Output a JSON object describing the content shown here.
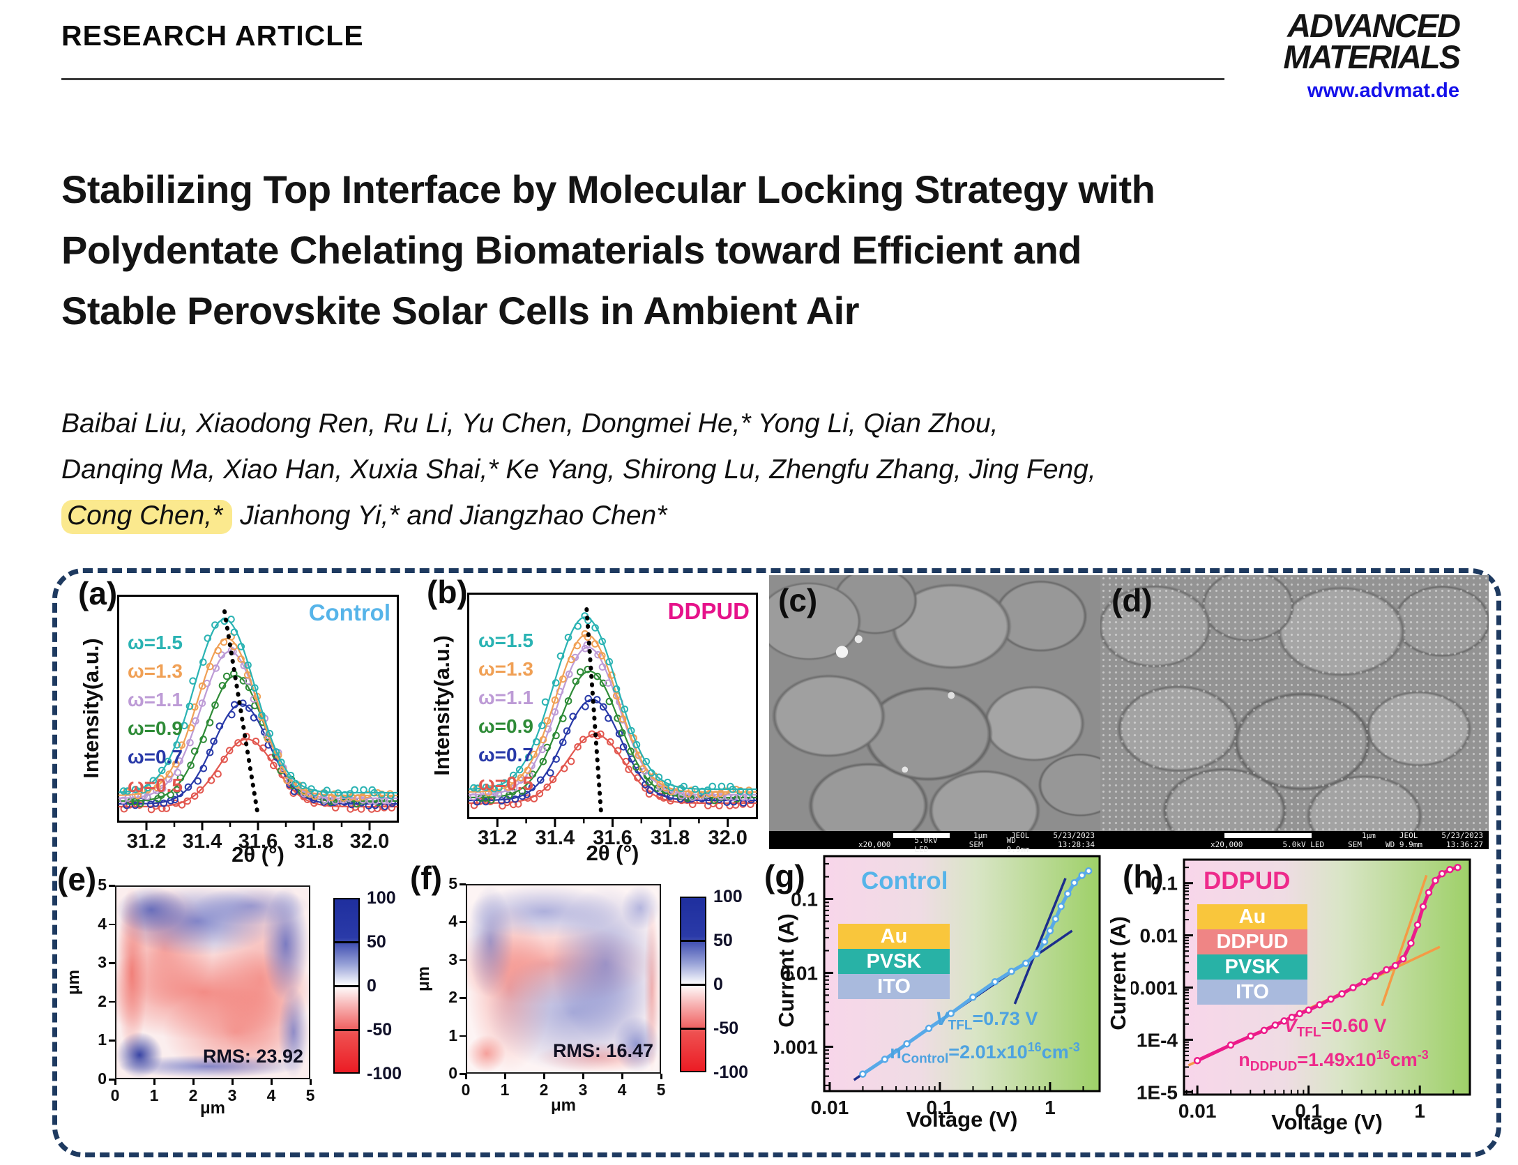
{
  "header": {
    "article_type": "RESEARCH ARTICLE",
    "brand_line1": "ADVANCED",
    "brand_line2": "MATERIALS",
    "website": "www.advmat.de"
  },
  "title": {
    "line1": "Stabilizing Top Interface by Molecular Locking Strategy with",
    "line2": "Polydentate Chelating Biomaterials toward Efficient and",
    "line3": "Stable Perovskite Solar Cells in Ambient Air"
  },
  "authors": {
    "line1": "Baibai Liu, Xiaodong Ren, Ru Li, Yu Chen, Dongmei He,* Yong Li, Qian Zhou,",
    "line2": "Danqing Ma, Xiao Han, Xuxia Shai,* Ke Yang, Shirong Lu, Zhengfu Zhang, Jing Feng,",
    "line3_highlight": "Cong Chen,*",
    "line3_rest": " Jianhong Yi,* and Jiangzhao Chen*"
  },
  "figure": {
    "panel_a": {
      "label": "(a)",
      "title": "Control",
      "xlabel": "2θ (°)",
      "ylabel": "Intensity(a.u.)"
    },
    "panel_b": {
      "label": "(b)",
      "title": "DDPUD",
      "xlabel": "2θ (°)",
      "ylabel": "Intensity(a.u.)"
    },
    "panel_c": {
      "label": "(c)",
      "bar": {
        "scale": "1μm",
        "vendor": "JEOL",
        "date": "5/23/2023",
        "mag": "x20,000",
        "volt": "5.0kV LED",
        "mode": "SEM",
        "wd": "WD 9.9mm",
        "time": "13:28:34"
      }
    },
    "panel_d": {
      "label": "(d)",
      "bar": {
        "scale": "1μm",
        "vendor": "JEOL",
        "date": "5/23/2023",
        "mag": "x20,000",
        "volt": "5.0kV LED",
        "mode": "SEM",
        "wd": "WD 9.9mm",
        "time": "13:36:27"
      }
    },
    "panel_e": {
      "label": "(e)",
      "rms": "RMS: 23.92",
      "axis_unit": "μm",
      "axis_ticks": [
        "0",
        "1",
        "2",
        "3",
        "4",
        "5"
      ],
      "colorbar_ticks": [
        "100",
        "50",
        "0",
        "-50",
        "-100"
      ]
    },
    "panel_f": {
      "label": "(f)",
      "rms": "RMS: 16.47",
      "axis_unit": "μm",
      "axis_ticks": [
        "0",
        "1",
        "2",
        "3",
        "4",
        "5"
      ],
      "colorbar_ticks": [
        "100",
        "50",
        "0",
        "-50",
        "-100"
      ]
    },
    "panel_g": {
      "label": "(g)",
      "title": "Control",
      "xlabel": "Voltage (V)",
      "ylabel": "Current (A)",
      "ann_color": "#4da2e0",
      "stack": [
        {
          "name": "Au",
          "color": "#f9c63c"
        },
        {
          "name": "PVSK",
          "color": "#28b2a6"
        },
        {
          "name": "ITO",
          "color": "#a9badd"
        }
      ],
      "ann": {
        "v": "V",
        "v_sub": "TFL",
        "v_eq": "=0.73 V",
        "n": "n",
        "n_sub": "Control",
        "n_eq": "=2.01x10",
        "n_exp": "16",
        "n_unit": "cm",
        "n_unit_exp": "-3"
      }
    },
    "panel_h": {
      "label": "(h)",
      "title": "DDPUD",
      "xlabel": "Voltage (V)",
      "ylabel": "Current (A)",
      "ann_color": "#ee2a8b",
      "stack": [
        {
          "name": "Au",
          "color": "#f9c63c"
        },
        {
          "name": "DDPUD",
          "color": "#ef8585"
        },
        {
          "name": "PVSK",
          "color": "#28b2a6"
        },
        {
          "name": "ITO",
          "color": "#a9badd"
        }
      ],
      "ann": {
        "v": "V",
        "v_sub": "TFL",
        "v_eq": "=0.60 V",
        "n": "n",
        "n_sub": "DDPUD",
        "n_eq": "=1.49x10",
        "n_exp": "16",
        "n_unit": "cm",
        "n_unit_exp": "-3"
      }
    }
  },
  "chart_data": [
    {
      "id": "xrd_control",
      "type": "line",
      "title": "Control",
      "title_color": "#56b4e9",
      "xlabel": "2θ (°)",
      "ylabel": "Intensity(a.u.)",
      "xlim": [
        31.1,
        32.1
      ],
      "x_ticks": [
        31.2,
        31.4,
        31.6,
        31.8,
        32.0
      ],
      "series": [
        {
          "name": "ω=1.5",
          "color": "#2ab3b3",
          "center": 31.48,
          "amp": 1.0,
          "width": 0.155
        },
        {
          "name": "ω=1.3",
          "color": "#f0a055",
          "center": 31.49,
          "amp": 0.89,
          "width": 0.15
        },
        {
          "name": "ω=1.1",
          "color": "#bd9bd6",
          "center": 31.5,
          "amp": 0.82,
          "width": 0.15
        },
        {
          "name": "ω=0.9",
          "color": "#2e8b37",
          "center": 31.52,
          "amp": 0.69,
          "width": 0.145
        },
        {
          "name": "ω=0.7",
          "color": "#2839a8",
          "center": 31.54,
          "amp": 0.54,
          "width": 0.14
        },
        {
          "name": "ω=0.5",
          "color": "#e2574f",
          "center": 31.56,
          "amp": 0.36,
          "width": 0.14
        }
      ],
      "peak_shift_guide": {
        "x1": 31.48,
        "x2": 31.6
      }
    },
    {
      "id": "xrd_ddpud",
      "type": "line",
      "title": "DDPUD",
      "title_color": "#e6128a",
      "xlabel": "2θ (°)",
      "ylabel": "Intensity(a.u.)",
      "xlim": [
        31.1,
        32.1
      ],
      "x_ticks": [
        31.2,
        31.4,
        31.6,
        31.8,
        32.0
      ],
      "series": [
        {
          "name": "ω=1.5",
          "color": "#2ab3b3",
          "center": 31.505,
          "amp": 1.0,
          "width": 0.155
        },
        {
          "name": "ω=1.3",
          "color": "#f0a055",
          "center": 31.51,
          "amp": 0.9,
          "width": 0.15
        },
        {
          "name": "ω=1.1",
          "color": "#bd9bd6",
          "center": 31.515,
          "amp": 0.83,
          "width": 0.15
        },
        {
          "name": "ω=0.9",
          "color": "#2e8b37",
          "center": 31.52,
          "amp": 0.7,
          "width": 0.145
        },
        {
          "name": "ω=0.7",
          "color": "#2839a8",
          "center": 31.53,
          "amp": 0.55,
          "width": 0.14
        },
        {
          "name": "ω=0.5",
          "color": "#e2574f",
          "center": 31.54,
          "amp": 0.37,
          "width": 0.14
        }
      ],
      "peak_shift_guide": {
        "x1": 31.51,
        "x2": 31.56
      }
    },
    {
      "id": "sclc_control",
      "type": "line",
      "title": "Control",
      "title_color": "#56b4e9",
      "xlabel": "Voltage (V)",
      "ylabel": "Current (A)",
      "x_ticks": [
        "0.01",
        "0.1",
        "1"
      ],
      "x_tick_logs": [
        -2,
        -1,
        0
      ],
      "y_ticks": [
        "0.1",
        "0.01",
        "0.001"
      ],
      "y_tick_logs": [
        -1,
        -2,
        -3
      ],
      "xlim_log": [
        -2.05,
        0.45
      ],
      "ylim_log": [
        -3.6,
        -0.42
      ],
      "color": "#58a9e8",
      "fit_color": "#1c2e8c",
      "v_tfl": "0.73 V",
      "n_trap": "2.01x10^16 cm^-3",
      "points_log": [
        [
          -1.7,
          -3.37
        ],
        [
          -1.5,
          -3.17
        ],
        [
          -1.3,
          -2.96
        ],
        [
          -1.1,
          -2.75
        ],
        [
          -0.9,
          -2.55
        ],
        [
          -0.7,
          -2.33
        ],
        [
          -0.5,
          -2.12
        ],
        [
          -0.35,
          -1.98
        ],
        [
          -0.22,
          -1.87
        ],
        [
          -0.12,
          -1.74
        ],
        [
          -0.05,
          -1.58
        ],
        [
          0,
          -1.43
        ],
        [
          0.05,
          -1.27
        ],
        [
          0.1,
          -1.1
        ],
        [
          0.16,
          -0.93
        ],
        [
          0.22,
          -0.78
        ],
        [
          0.29,
          -0.68
        ],
        [
          0.35,
          -0.62
        ]
      ],
      "fit_lines": [
        {
          "pts": [
            [
              -1.78,
              -3.45
            ],
            [
              0.2,
              -1.43
            ]
          ]
        },
        {
          "pts": [
            [
              -0.32,
              -2.42
            ],
            [
              0.14,
              -0.72
            ]
          ]
        }
      ]
    },
    {
      "id": "sclc_ddpud",
      "type": "line",
      "title": "DDPUD",
      "title_color": "#ee2a8b",
      "xlabel": "Voltage (V)",
      "ylabel": "Current (A)",
      "x_ticks": [
        "0.01",
        "0.1",
        "1"
      ],
      "x_tick_logs": [
        -2,
        -1,
        0
      ],
      "y_ticks": [
        "0.1",
        "0.01",
        "0.001",
        "1E-4",
        "1E-5"
      ],
      "y_tick_logs": [
        -1,
        -2,
        -3,
        -4,
        -5
      ],
      "xlim_log": [
        -2.12,
        0.45
      ],
      "ylim_log": [
        -5.05,
        -0.55
      ],
      "color": "#ec1b8a",
      "fit_color": "#f59a45",
      "v_tfl": "0.60 V",
      "n_trap": "1.49x10^16 cm^-3",
      "points_log": [
        [
          -2,
          -4.4
        ],
        [
          -1.7,
          -4.1
        ],
        [
          -1.52,
          -3.93
        ],
        [
          -1.4,
          -3.82
        ],
        [
          -1.3,
          -3.72
        ],
        [
          -1.22,
          -3.64
        ],
        [
          -1.15,
          -3.57
        ],
        [
          -1.08,
          -3.5
        ],
        [
          -1,
          -3.43
        ],
        [
          -0.9,
          -3.33
        ],
        [
          -0.8,
          -3.22
        ],
        [
          -0.7,
          -3.12
        ],
        [
          -0.6,
          -3
        ],
        [
          -0.5,
          -2.89
        ],
        [
          -0.4,
          -2.78
        ],
        [
          -0.3,
          -2.66
        ],
        [
          -0.22,
          -2.58
        ],
        [
          -0.15,
          -2.45
        ],
        [
          -0.08,
          -2.15
        ],
        [
          -0.02,
          -1.8
        ],
        [
          0.03,
          -1.45
        ],
        [
          0.08,
          -1.18
        ],
        [
          0.14,
          -0.95
        ],
        [
          0.2,
          -0.82
        ],
        [
          0.27,
          -0.74
        ],
        [
          0.34,
          -0.7
        ]
      ],
      "fit_lines": [
        {
          "pts": [
            [
              -2.08,
              -4.49
            ],
            [
              0.18,
              -2.22
            ]
          ]
        },
        {
          "pts": [
            [
              -0.34,
              -3.35
            ],
            [
              0.06,
              -0.85
            ]
          ]
        }
      ]
    },
    {
      "id": "afm_control",
      "type": "heatmap",
      "rms": 23.92,
      "xlabel": "μm",
      "ylabel": "μm",
      "x_range": [
        0,
        5
      ],
      "y_range": [
        0,
        5
      ],
      "colorbar_ticks": [
        100,
        50,
        0,
        -50,
        -100
      ]
    },
    {
      "id": "afm_ddpud",
      "type": "heatmap",
      "rms": 16.47,
      "xlabel": "μm",
      "ylabel": "μm",
      "x_range": [
        0,
        5
      ],
      "y_range": [
        0,
        5
      ],
      "colorbar_ticks": [
        100,
        50,
        0,
        -50,
        -100
      ]
    }
  ]
}
